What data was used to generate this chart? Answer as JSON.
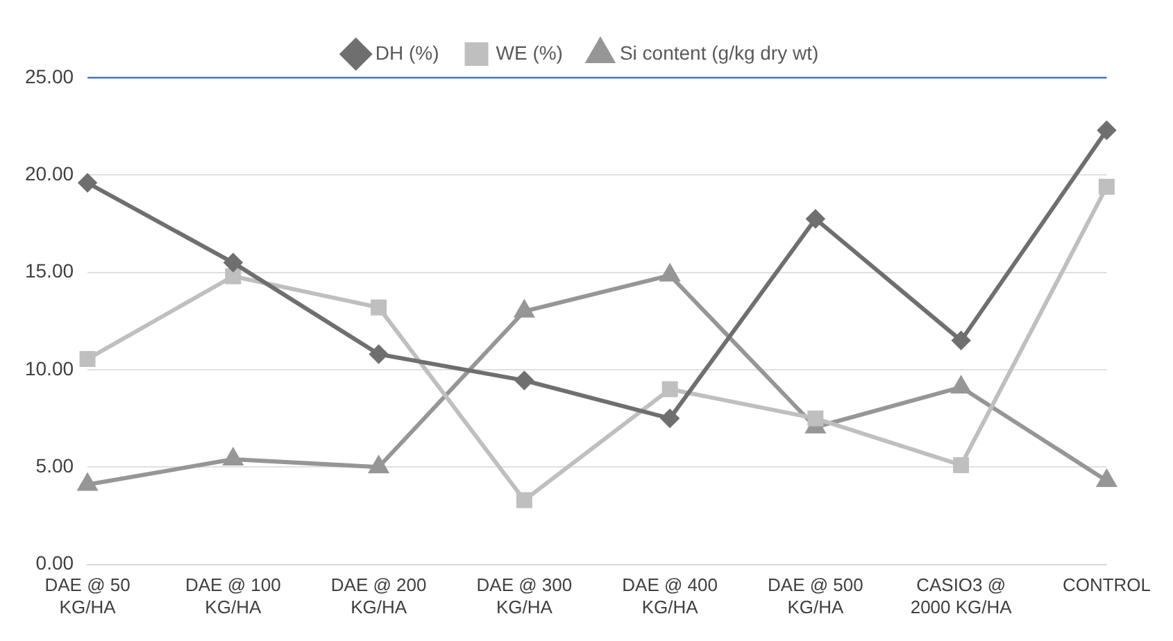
{
  "chart_data": {
    "type": "line",
    "categories": [
      "DAE @ 50 KG/HA",
      "DAE @ 100 KG/HA",
      "DAE @ 200 KG/HA",
      "DAE @ 300 KG/HA",
      "DAE @ 400 KG/HA",
      "DAE @ 500 KG/HA",
      "CASIO3 @ 2000 KG/HA",
      "CONTROL"
    ],
    "series": [
      {
        "name": "DH (%)",
        "color": "#6f6f6f",
        "marker": "diamond",
        "values": [
          19.6,
          15.5,
          10.8,
          9.45,
          7.5,
          17.75,
          11.5,
          22.3
        ]
      },
      {
        "name": "WE (%)",
        "color": "#bfbfbf",
        "marker": "square",
        "values": [
          10.55,
          14.8,
          13.2,
          3.3,
          9.0,
          7.5,
          5.1,
          19.4
        ]
      },
      {
        "name": "Si content (g/kg dry wt)",
        "color": "#969696",
        "marker": "triangle",
        "values": [
          4.1,
          5.4,
          5.0,
          13.0,
          14.85,
          7.05,
          9.1,
          4.3
        ]
      }
    ],
    "ylim": [
      0,
      25
    ],
    "yticks": [
      {
        "value": 0,
        "label": "0.00"
      },
      {
        "value": 5,
        "label": "5.00"
      },
      {
        "value": 10,
        "label": "10.00"
      },
      {
        "value": 15,
        "label": "15.00"
      },
      {
        "value": 20,
        "label": "20.00"
      },
      {
        "value": 25,
        "label": "25.00"
      }
    ],
    "ref_lines": [
      {
        "axis": "y",
        "value": 25,
        "color": "#4472c4"
      }
    ],
    "grid": "y",
    "legend": "top",
    "line_style": "solid"
  }
}
